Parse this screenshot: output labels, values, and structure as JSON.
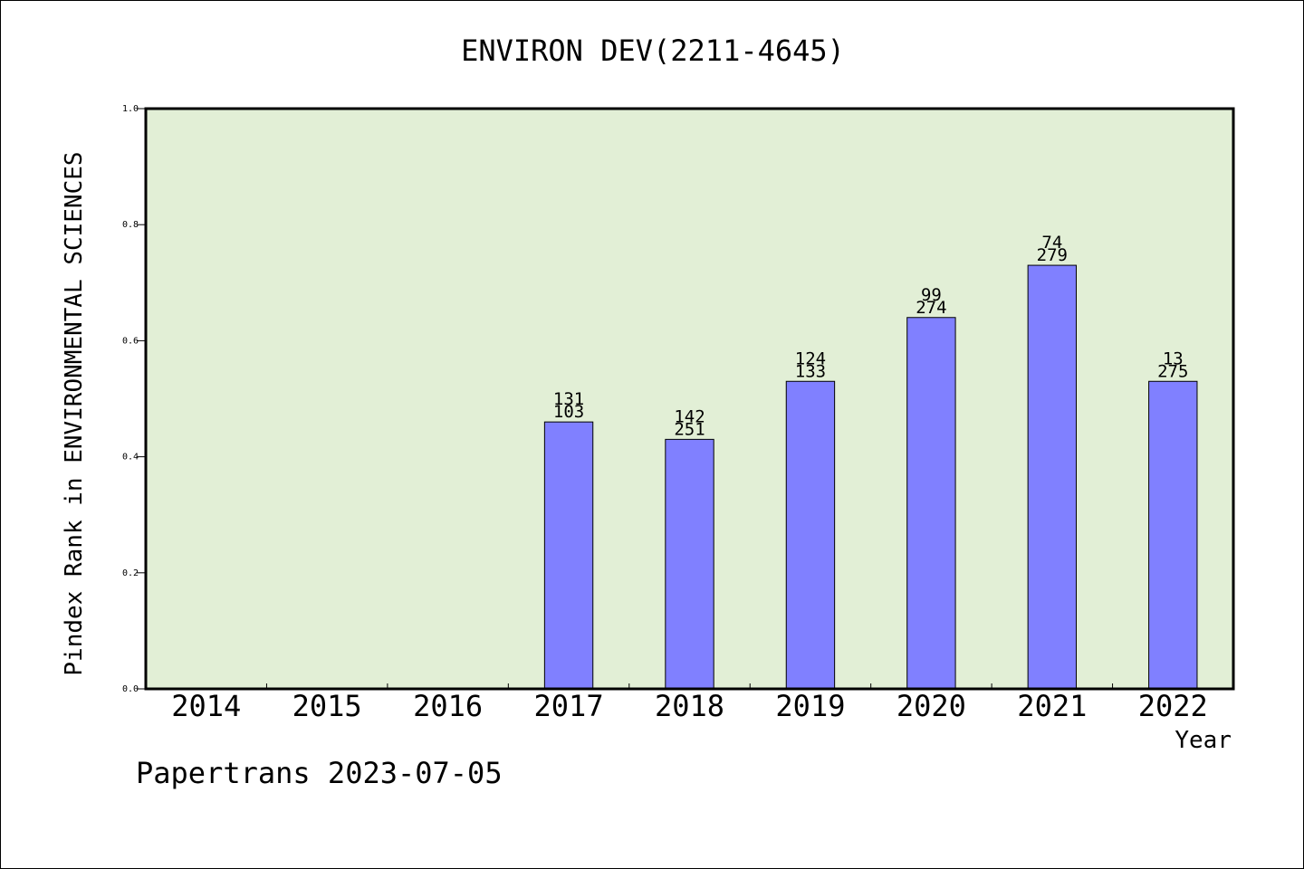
{
  "chart_data": {
    "type": "bar",
    "title": "ENVIRON DEV(2211-4645)",
    "xlabel": "Year",
    "ylabel": "Pindex Rank in ENVIRONMENTAL SCIENCES",
    "ylim": [
      0,
      1.0
    ],
    "yticks": [
      "0.0",
      "0.2",
      "0.4",
      "0.6",
      "0.8",
      "1.0"
    ],
    "grid": false,
    "categories": [
      "2014",
      "2015",
      "2016",
      "2017",
      "2018",
      "2019",
      "2020",
      "2021",
      "2022"
    ],
    "values": [
      null,
      null,
      null,
      0.46,
      0.43,
      0.53,
      0.64,
      0.73,
      0.53
    ],
    "labels_top": [
      "",
      "",
      "",
      "131",
      "142",
      "124",
      "99",
      "74",
      "13"
    ],
    "labels_bottom": [
      "",
      "",
      "",
      "103",
      "251",
      "133",
      "274",
      "279",
      "275"
    ],
    "colors": {
      "plot_background": "#e2efd6",
      "bar_fill": "#8080ff",
      "bar_stroke": "#000000",
      "axis": "#000000"
    }
  },
  "footer": {
    "text": "Papertrans 2023-07-05"
  }
}
